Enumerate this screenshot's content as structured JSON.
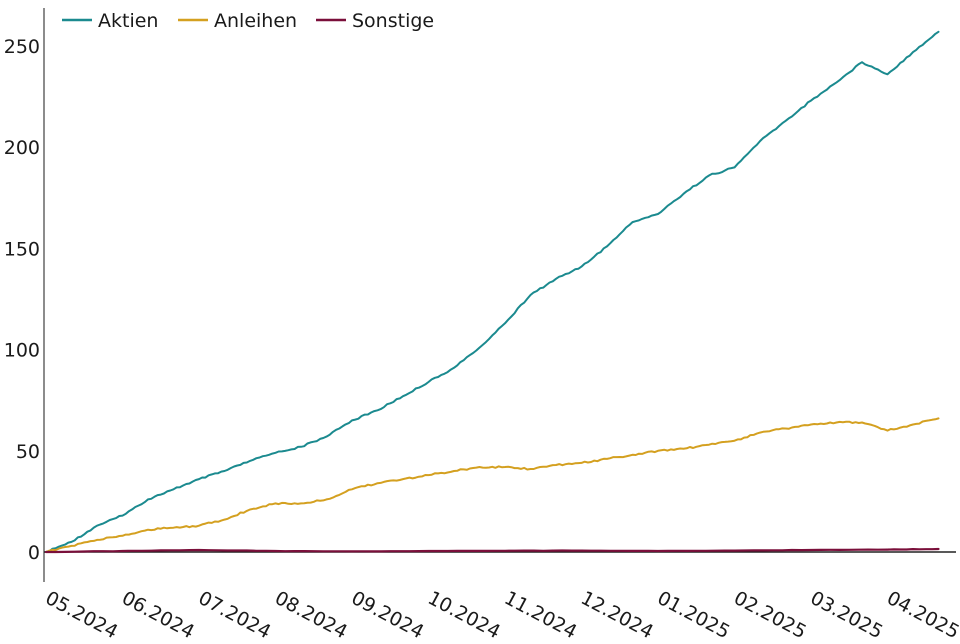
{
  "chart_data": {
    "type": "line",
    "title": "",
    "xlabel": "",
    "ylabel": "",
    "ylim": [
      0,
      260
    ],
    "yticks": [
      0,
      50,
      100,
      150,
      200,
      250
    ],
    "x_tick_labels": [
      "05.2024",
      "06.2024",
      "07.2024",
      "08.2024",
      "09.2024",
      "10.2024",
      "11.2024",
      "12.2024",
      "01.2025",
      "02.2025",
      "03.2025",
      "04.2025"
    ],
    "legend_position": "top-left",
    "grid": false,
    "series": [
      {
        "name": "Aktien",
        "color": "#1b8a8f",
        "points": [
          [
            "05.2024",
            0
          ],
          [
            "05.2024+",
            5
          ],
          [
            "05.2024++",
            13
          ],
          [
            "06.2024",
            18
          ],
          [
            "06.2024+",
            26
          ],
          [
            "06.2024++",
            31
          ],
          [
            "07.2024",
            36
          ],
          [
            "07.2024+",
            40
          ],
          [
            "07.2024++",
            45
          ],
          [
            "08.2024",
            49
          ],
          [
            "08.2024+",
            52
          ],
          [
            "08.2024++",
            57
          ],
          [
            "09.2024",
            65
          ],
          [
            "09.2024+",
            70
          ],
          [
            "09.2024++",
            77
          ],
          [
            "10.2024",
            84
          ],
          [
            "10.2024+",
            91
          ],
          [
            "10.2024++",
            101
          ],
          [
            "11.2024",
            113
          ],
          [
            "11.2024+",
            127
          ],
          [
            "11.2024++",
            135
          ],
          [
            "12.2024",
            141
          ],
          [
            "12.2024+",
            151
          ],
          [
            "12.2024++",
            163
          ],
          [
            "01.2025",
            167
          ],
          [
            "01.2025+",
            177
          ],
          [
            "01.2025++",
            186
          ],
          [
            "02.2025",
            190
          ],
          [
            "02.2025+",
            203
          ],
          [
            "02.2025++",
            213
          ],
          [
            "03.2025",
            223
          ],
          [
            "03.2025+",
            232
          ],
          [
            "03.2025++",
            242
          ],
          [
            "04.2025",
            236
          ],
          [
            "04.2025+",
            247
          ],
          [
            "04.2025++",
            257
          ]
        ]
      },
      {
        "name": "Anleihen",
        "color": "#d4a020",
        "points": [
          [
            "05.2024",
            0
          ],
          [
            "05.2024+",
            3
          ],
          [
            "05.2024++",
            6
          ],
          [
            "06.2024",
            8
          ],
          [
            "06.2024+",
            11
          ],
          [
            "06.2024++",
            12
          ],
          [
            "07.2024",
            13
          ],
          [
            "07.2024+",
            16
          ],
          [
            "07.2024++",
            21
          ],
          [
            "08.2024",
            24
          ],
          [
            "08.2024+",
            24
          ],
          [
            "08.2024++",
            26
          ],
          [
            "09.2024",
            31
          ],
          [
            "09.2024+",
            34
          ],
          [
            "09.2024++",
            36
          ],
          [
            "10.2024",
            38
          ],
          [
            "10.2024+",
            40
          ],
          [
            "10.2024++",
            42
          ],
          [
            "11.2024",
            42
          ],
          [
            "11.2024+",
            41
          ],
          [
            "11.2024++",
            43
          ],
          [
            "12.2024",
            44
          ],
          [
            "12.2024+",
            46
          ],
          [
            "12.2024++",
            48
          ],
          [
            "01.2025",
            50
          ],
          [
            "01.2025+",
            51
          ],
          [
            "01.2025++",
            53
          ],
          [
            "02.2025",
            55
          ],
          [
            "02.2025+",
            59
          ],
          [
            "02.2025++",
            61
          ],
          [
            "03.2025",
            63
          ],
          [
            "03.2025+",
            64
          ],
          [
            "03.2025++",
            64
          ],
          [
            "04.2025",
            60
          ],
          [
            "04.2025+",
            63
          ],
          [
            "04.2025++",
            66
          ]
        ]
      },
      {
        "name": "Sonstige",
        "color": "#7a0f3a",
        "points": [
          [
            "05.2024",
            0
          ],
          [
            "06.2024",
            0.5
          ],
          [
            "07.2024",
            1
          ],
          [
            "08.2024",
            0.5
          ],
          [
            "09.2024",
            0.3
          ],
          [
            "10.2024",
            0.5
          ],
          [
            "11.2024",
            0.6
          ],
          [
            "12.2024",
            0.7
          ],
          [
            "01.2025",
            0.5
          ],
          [
            "02.2025",
            0.7
          ],
          [
            "03.2025",
            1
          ],
          [
            "04.2025",
            1.2
          ],
          [
            "04.2025++",
            1.5
          ]
        ]
      }
    ]
  }
}
